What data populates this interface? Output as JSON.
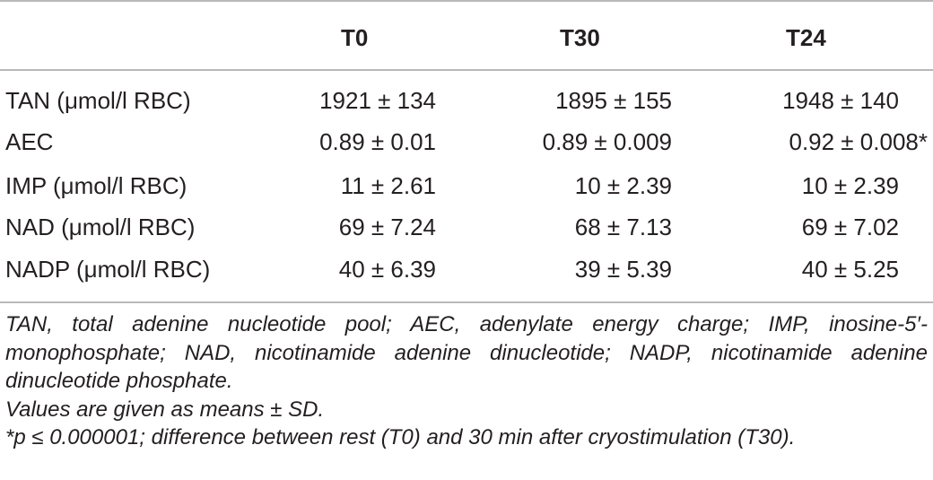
{
  "table": {
    "columns": [
      "",
      "T0",
      "T30",
      "T24"
    ],
    "rows": [
      {
        "label": "TAN (μmol/l RBC)",
        "t0": "1921 ± 134",
        "t30": "1895 ± 155",
        "t24": "1948 ± 140"
      },
      {
        "label": "AEC",
        "t0": "0.89 ± 0.01",
        "t30": "0.89 ± 0.009",
        "t24": "0.92 ± 0.008*"
      },
      {
        "label": "IMP (μmol/l RBC)",
        "t0": "11 ± 2.61",
        "t30": "10 ± 2.39",
        "t24": "10 ± 2.39"
      },
      {
        "label": "NAD (μmol/l RBC)",
        "t0": "69 ± 7.24",
        "t30": "68 ± 7.13",
        "t24": "69 ± 7.02"
      },
      {
        "label": "NADP (μmol/l RBC)",
        "t0": "40 ± 6.39",
        "t30": "39 ± 5.39",
        "t24": "40 ± 5.25"
      }
    ]
  },
  "footnotes": {
    "abbreviations": "TAN, total adenine nucleotide pool; AEC, adenylate energy charge; IMP, inosine-5′-monophosphate; NAD, nicotinamide adenine dinucleotide; NADP, nicotinamide adenine dinucleotide phosphate.",
    "values_note": "Values are given as means ± SD.",
    "significance": "*p ≤ 0.000001; difference between rest (T0) and 30 min after cryostimulation (T30)."
  }
}
